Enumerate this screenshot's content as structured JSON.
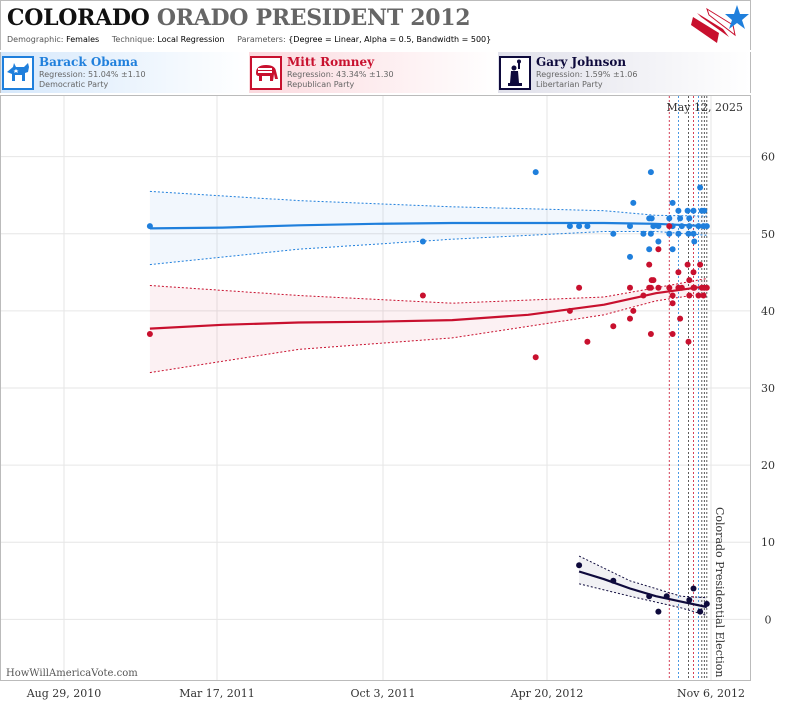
{
  "header": {
    "title_state": "COLORADO",
    "title_state_suffix": "ORADO",
    "title_rest": "PRESIDENT 2012",
    "demographic_label": "Demographic:",
    "demographic_value": "Females",
    "technique_label": "Technique:",
    "technique_value": "Local Regression",
    "parameters_label": "Parameters:",
    "parameters_value": "{Degree = Linear, Alpha = 0.5, Bandwidth = 500}"
  },
  "candidates": [
    {
      "name": "Barack Obama",
      "regression": "Regression: 51.04% ±1.10",
      "party": "Democratic Party",
      "color": "#1f7fdc",
      "icon": "donkey-icon"
    },
    {
      "name": "Mitt Romney",
      "regression": "Regression: 43.34% ±1.30",
      "party": "Republican Party",
      "color": "#c8102e",
      "icon": "elephant-icon"
    },
    {
      "name": "Gary Johnson",
      "regression": "Regression: 1.59% ±1.06",
      "party": "Libertarian Party",
      "color": "#0e0a3c",
      "icon": "statue-of-liberty-icon"
    }
  ],
  "footer": {
    "site": "HowWillAmericaVote.com"
  },
  "chart_data": {
    "type": "scatter",
    "date_label": "May 12, 2025",
    "event_label": "Colorado Presidential Election",
    "x_ticks": [
      "Aug 29, 2010",
      "Mar 17, 2011",
      "Oct 3, 2011",
      "Apr 20, 2012",
      "Nov 6, 2012"
    ],
    "xlim": [
      "2010-08-29",
      "2012-11-06"
    ],
    "ylim": [
      -8,
      68
    ],
    "y_ticks": [
      0,
      10,
      20,
      30,
      40,
      50,
      60
    ],
    "grid": true,
    "poll_dates": [
      "2012-09-17",
      "2012-09-28",
      "2012-10-10",
      "2012-10-16",
      "2012-10-22",
      "2012-10-26",
      "2012-10-29",
      "2012-11-01"
    ],
    "series": [
      {
        "name": "Barack Obama",
        "color": "#1f7fdc",
        "points": [
          [
            "2011-01-04",
            51
          ],
          [
            "2011-11-27",
            49
          ],
          [
            "2012-04-10",
            58
          ],
          [
            "2012-05-21",
            51
          ],
          [
            "2012-06-01",
            51
          ],
          [
            "2012-06-11",
            51
          ],
          [
            "2012-07-12",
            50
          ],
          [
            "2012-08-01",
            47
          ],
          [
            "2012-08-01",
            51
          ],
          [
            "2012-08-05",
            54
          ],
          [
            "2012-08-17",
            50
          ],
          [
            "2012-08-24",
            52
          ],
          [
            "2012-08-24",
            48
          ],
          [
            "2012-08-26",
            50
          ],
          [
            "2012-08-26",
            58
          ],
          [
            "2012-08-27",
            52
          ],
          [
            "2012-08-29",
            51
          ],
          [
            "2012-09-04",
            49
          ],
          [
            "2012-09-04",
            51
          ],
          [
            "2012-09-17",
            52
          ],
          [
            "2012-09-17",
            50
          ],
          [
            "2012-09-21",
            48
          ],
          [
            "2012-09-21",
            51
          ],
          [
            "2012-09-21",
            54
          ],
          [
            "2012-09-28",
            53
          ],
          [
            "2012-09-28",
            50
          ],
          [
            "2012-09-30",
            52
          ],
          [
            "2012-10-02",
            51
          ],
          [
            "2012-10-09",
            53
          ],
          [
            "2012-10-10",
            50
          ],
          [
            "2012-10-11",
            52
          ],
          [
            "2012-10-11",
            51
          ],
          [
            "2012-10-16",
            50
          ],
          [
            "2012-10-16",
            53
          ],
          [
            "2012-10-17",
            49
          ],
          [
            "2012-10-22",
            51
          ],
          [
            "2012-10-24",
            56
          ],
          [
            "2012-10-26",
            53
          ],
          [
            "2012-10-28",
            51
          ],
          [
            "2012-10-29",
            53
          ],
          [
            "2012-11-01",
            51
          ]
        ],
        "fit": [
          [
            "2011-01-04",
            50.7
          ],
          [
            "2011-04-01",
            50.8
          ],
          [
            "2011-07-01",
            51.1
          ],
          [
            "2011-10-01",
            51.3
          ],
          [
            "2012-01-01",
            51.4
          ],
          [
            "2012-04-01",
            51.4
          ],
          [
            "2012-07-01",
            51.4
          ],
          [
            "2012-09-01",
            51.3
          ],
          [
            "2012-11-01",
            51.0
          ]
        ],
        "upper": [
          [
            "2011-01-04",
            55.5
          ],
          [
            "2011-07-01",
            54.3
          ],
          [
            "2012-01-01",
            53.5
          ],
          [
            "2012-07-01",
            53.0
          ],
          [
            "2012-09-01",
            52.4
          ],
          [
            "2012-11-01",
            52.3
          ]
        ],
        "lower": [
          [
            "2011-01-04",
            46.0
          ],
          [
            "2011-07-01",
            48.0
          ],
          [
            "2012-01-01",
            49.3
          ],
          [
            "2012-07-01",
            50.3
          ],
          [
            "2012-09-01",
            50.3
          ],
          [
            "2012-11-01",
            49.8
          ]
        ]
      },
      {
        "name": "Mitt Romney",
        "color": "#c8102e",
        "points": [
          [
            "2011-01-04",
            37
          ],
          [
            "2011-11-27",
            42
          ],
          [
            "2012-04-10",
            34
          ],
          [
            "2012-05-21",
            40
          ],
          [
            "2012-06-01",
            43
          ],
          [
            "2012-06-11",
            36
          ],
          [
            "2012-07-12",
            38
          ],
          [
            "2012-08-01",
            43
          ],
          [
            "2012-08-01",
            39
          ],
          [
            "2012-08-05",
            40
          ],
          [
            "2012-08-17",
            42
          ],
          [
            "2012-08-24",
            46
          ],
          [
            "2012-08-24",
            43
          ],
          [
            "2012-08-26",
            37
          ],
          [
            "2012-08-26",
            43
          ],
          [
            "2012-08-27",
            44
          ],
          [
            "2012-08-29",
            44
          ],
          [
            "2012-09-04",
            48
          ],
          [
            "2012-09-04",
            43
          ],
          [
            "2012-09-17",
            51
          ],
          [
            "2012-09-17",
            43
          ],
          [
            "2012-09-21",
            37
          ],
          [
            "2012-09-21",
            41
          ],
          [
            "2012-09-21",
            42
          ],
          [
            "2012-09-28",
            43
          ],
          [
            "2012-09-28",
            45
          ],
          [
            "2012-09-30",
            39
          ],
          [
            "2012-10-02",
            43
          ],
          [
            "2012-10-09",
            46
          ],
          [
            "2012-10-10",
            36
          ],
          [
            "2012-10-11",
            44
          ],
          [
            "2012-10-11",
            42
          ],
          [
            "2012-10-16",
            45
          ],
          [
            "2012-10-16",
            43
          ],
          [
            "2012-10-17",
            43
          ],
          [
            "2012-10-22",
            42
          ],
          [
            "2012-10-24",
            46
          ],
          [
            "2012-10-26",
            43
          ],
          [
            "2012-10-28",
            42
          ],
          [
            "2012-10-29",
            43
          ],
          [
            "2012-11-01",
            43
          ]
        ],
        "fit": [
          [
            "2011-01-04",
            37.7
          ],
          [
            "2011-04-01",
            38.2
          ],
          [
            "2011-07-01",
            38.5
          ],
          [
            "2011-10-01",
            38.6
          ],
          [
            "2012-01-01",
            38.8
          ],
          [
            "2012-04-01",
            39.5
          ],
          [
            "2012-07-01",
            40.8
          ],
          [
            "2012-09-01",
            42.3
          ],
          [
            "2012-11-01",
            43.2
          ]
        ],
        "upper": [
          [
            "2011-01-04",
            43.3
          ],
          [
            "2011-07-01",
            42.0
          ],
          [
            "2012-01-01",
            41.0
          ],
          [
            "2012-07-01",
            41.8
          ],
          [
            "2012-09-01",
            43.0
          ],
          [
            "2012-11-01",
            44.2
          ]
        ],
        "lower": [
          [
            "2011-01-04",
            32.0
          ],
          [
            "2011-07-01",
            35.0
          ],
          [
            "2012-01-01",
            36.5
          ],
          [
            "2012-07-01",
            39.5
          ],
          [
            "2012-09-01",
            41.3
          ],
          [
            "2012-11-01",
            42.3
          ]
        ]
      },
      {
        "name": "Gary Johnson",
        "color": "#0e0a3c",
        "points": [
          [
            "2012-06-01",
            7
          ],
          [
            "2012-07-12",
            5
          ],
          [
            "2012-08-24",
            3
          ],
          [
            "2012-09-04",
            1
          ],
          [
            "2012-09-14",
            3
          ],
          [
            "2012-10-11",
            2.5
          ],
          [
            "2012-10-16",
            4
          ],
          [
            "2012-10-24",
            1
          ],
          [
            "2012-11-01",
            2
          ]
        ],
        "fit": [
          [
            "2012-06-01",
            6.2
          ],
          [
            "2012-07-01",
            5.2
          ],
          [
            "2012-08-01",
            4.0
          ],
          [
            "2012-09-01",
            3.0
          ],
          [
            "2012-10-01",
            2.3
          ],
          [
            "2012-11-01",
            1.6
          ]
        ],
        "upper": [
          [
            "2012-06-01",
            8.2
          ],
          [
            "2012-08-01",
            5.0
          ],
          [
            "2012-10-01",
            3.0
          ],
          [
            "2012-11-01",
            2.8
          ]
        ],
        "lower": [
          [
            "2012-06-01",
            4.6
          ],
          [
            "2012-08-01",
            3.0
          ],
          [
            "2012-10-01",
            1.5
          ],
          [
            "2012-11-01",
            0.5
          ]
        ]
      }
    ]
  }
}
